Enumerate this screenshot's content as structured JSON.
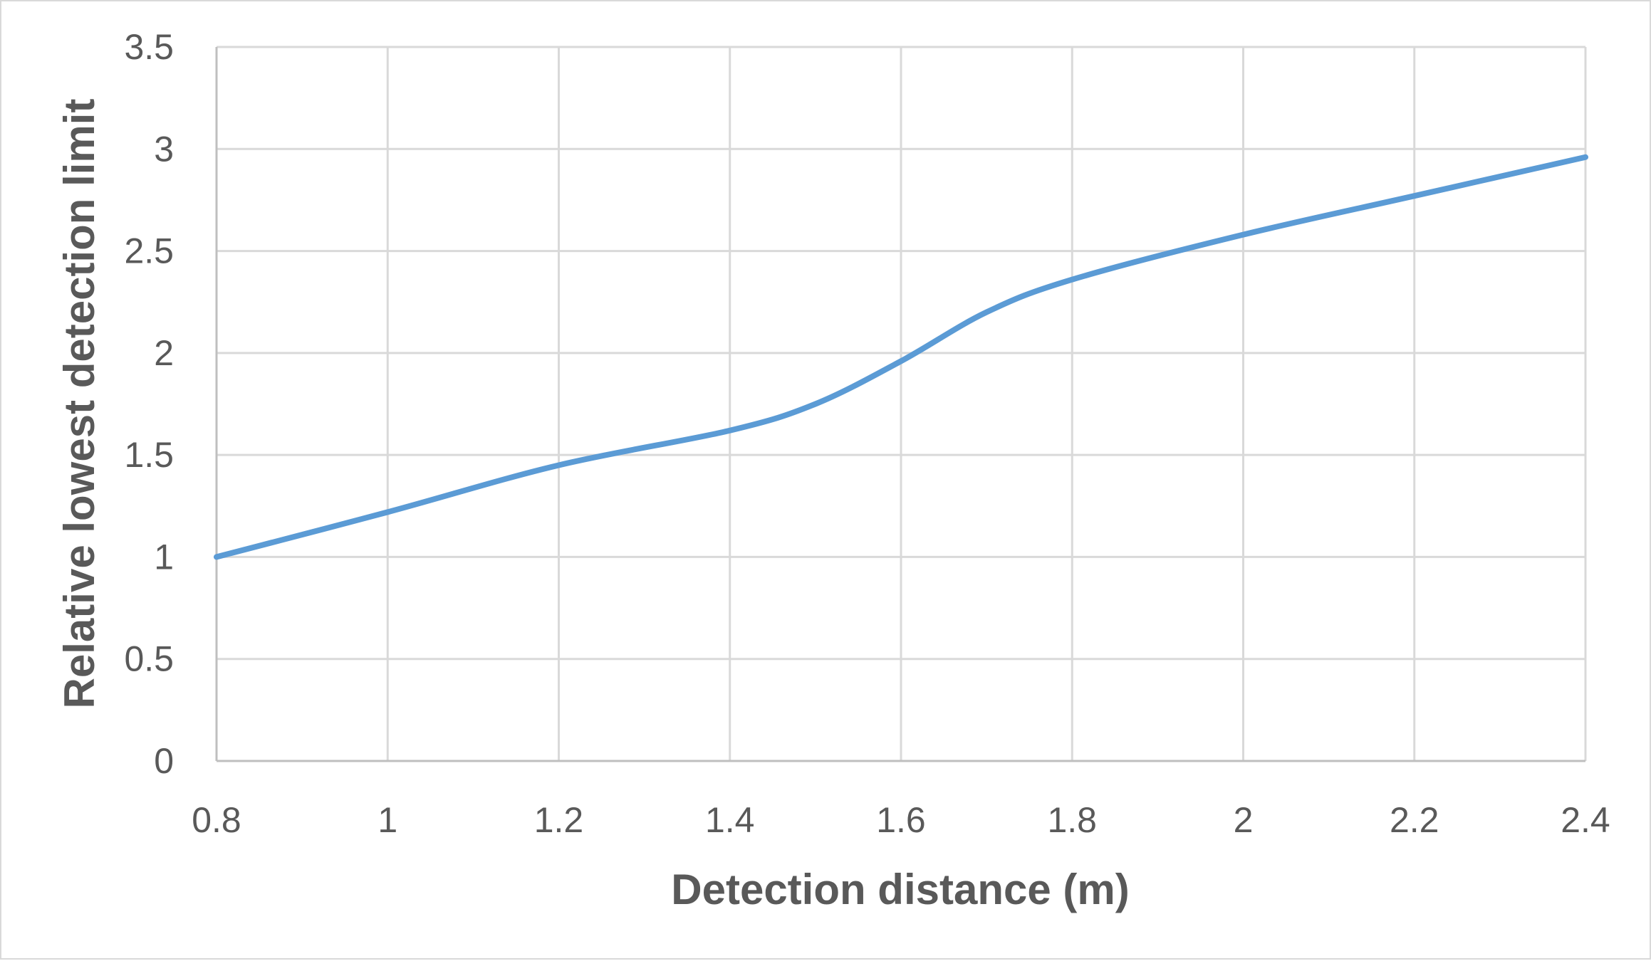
{
  "chart_data": {
    "type": "line",
    "xlabel": "Detection distance (m)",
    "ylabel": "Relative lowest detection limit",
    "xlim": [
      0.8,
      2.4
    ],
    "ylim": [
      0,
      3.5
    ],
    "x_ticks": [
      "0.8",
      "1",
      "1.2",
      "1.4",
      "1.6",
      "1.8",
      "2",
      "2.2",
      "2.4"
    ],
    "y_ticks": [
      "0",
      "0.5",
      "1",
      "1.5",
      "2",
      "2.5",
      "3",
      "3.5"
    ],
    "grid": true,
    "legend": "none",
    "series": [
      {
        "color": "#5b9bd5",
        "smooth": true,
        "x": [
          0.8,
          1.0,
          1.2,
          1.4,
          1.5,
          1.6,
          1.7,
          1.8,
          2.0,
          2.2,
          2.4
        ],
        "y": [
          1.0,
          1.22,
          1.45,
          1.62,
          1.75,
          1.96,
          2.2,
          2.36,
          2.58,
          2.77,
          2.96
        ]
      }
    ]
  }
}
